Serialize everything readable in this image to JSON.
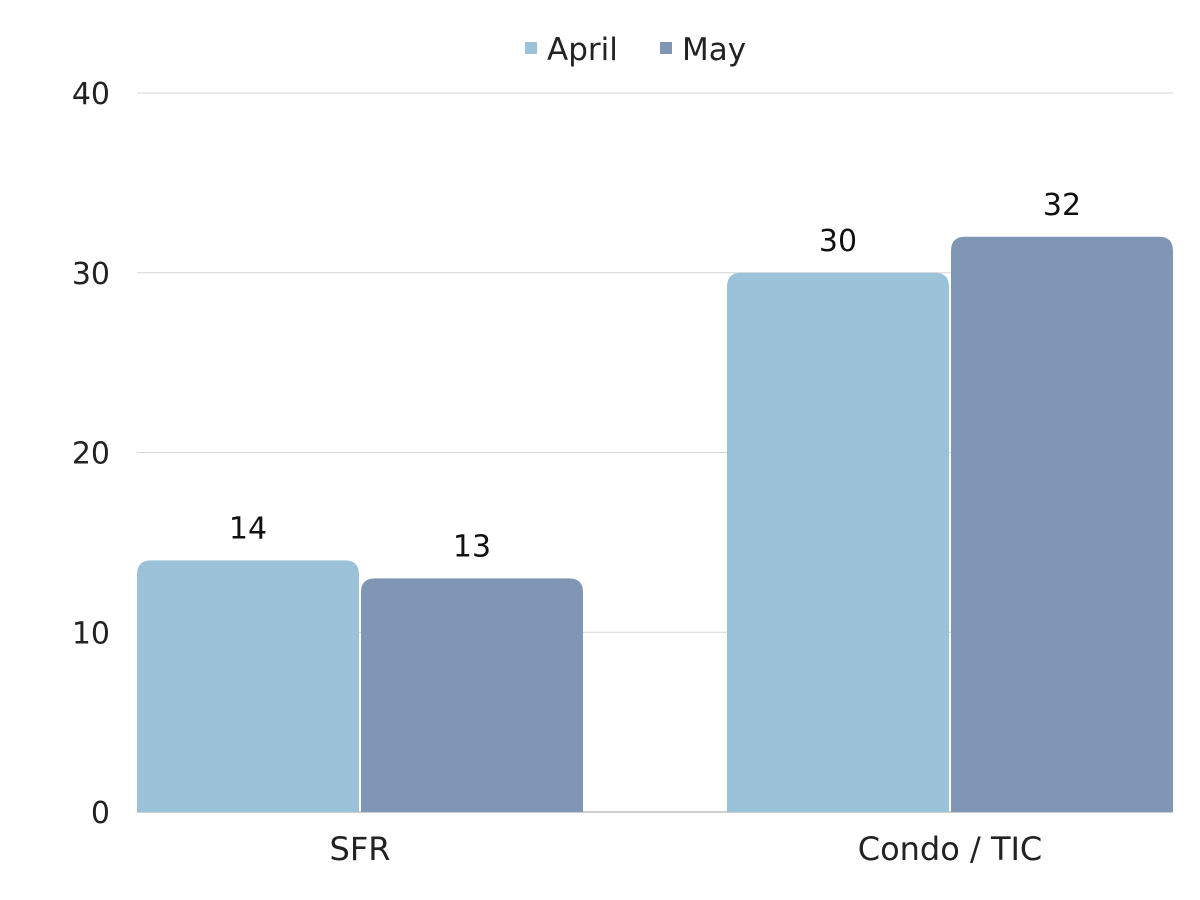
{
  "chart_data": {
    "type": "bar",
    "categories": [
      "SFR",
      "Condo / TIC"
    ],
    "series": [
      {
        "name": "April",
        "values": [
          14,
          30
        ],
        "color": "#9BC2D8"
      },
      {
        "name": "May",
        "values": [
          13,
          32
        ],
        "color": "#7F97B4"
      }
    ],
    "ylim": [
      0,
      40
    ],
    "yticks": [
      "0",
      "10",
      "20",
      "30",
      "40"
    ],
    "grid": true,
    "legend_position": "top-center",
    "data_labels": [
      [
        "14",
        "30"
      ],
      [
        "13",
        "32"
      ]
    ]
  }
}
